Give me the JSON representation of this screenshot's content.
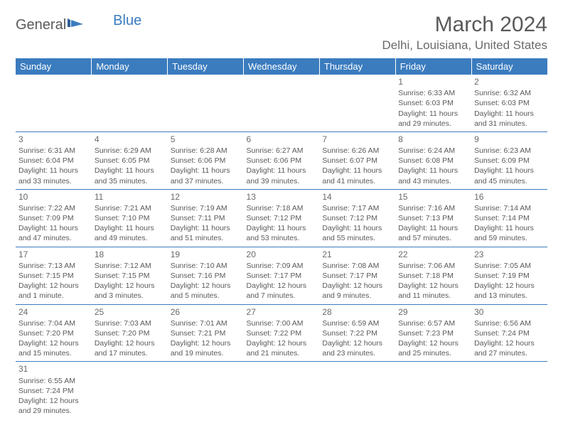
{
  "logo": {
    "text_general": "General",
    "text_blue": "Blue"
  },
  "title": "March 2024",
  "location": "Delhi, Louisiana, United States",
  "colors": {
    "header_bg": "#3b7cbf",
    "header_text": "#ffffff",
    "body_text": "#5a5a5a",
    "rule": "#3b7cbf",
    "background": "#ffffff"
  },
  "typography": {
    "title_fontsize": 30,
    "location_fontsize": 17,
    "th_fontsize": 13,
    "cell_fontsize": 10.5,
    "daynum_fontsize": 12
  },
  "weekdays": [
    "Sunday",
    "Monday",
    "Tuesday",
    "Wednesday",
    "Thursday",
    "Friday",
    "Saturday"
  ],
  "weeks": [
    [
      null,
      null,
      null,
      null,
      null,
      {
        "n": "1",
        "sr": "Sunrise: 6:33 AM",
        "ss": "Sunset: 6:03 PM",
        "d1": "Daylight: 11 hours",
        "d2": "and 29 minutes."
      },
      {
        "n": "2",
        "sr": "Sunrise: 6:32 AM",
        "ss": "Sunset: 6:03 PM",
        "d1": "Daylight: 11 hours",
        "d2": "and 31 minutes."
      }
    ],
    [
      {
        "n": "3",
        "sr": "Sunrise: 6:31 AM",
        "ss": "Sunset: 6:04 PM",
        "d1": "Daylight: 11 hours",
        "d2": "and 33 minutes."
      },
      {
        "n": "4",
        "sr": "Sunrise: 6:29 AM",
        "ss": "Sunset: 6:05 PM",
        "d1": "Daylight: 11 hours",
        "d2": "and 35 minutes."
      },
      {
        "n": "5",
        "sr": "Sunrise: 6:28 AM",
        "ss": "Sunset: 6:06 PM",
        "d1": "Daylight: 11 hours",
        "d2": "and 37 minutes."
      },
      {
        "n": "6",
        "sr": "Sunrise: 6:27 AM",
        "ss": "Sunset: 6:06 PM",
        "d1": "Daylight: 11 hours",
        "d2": "and 39 minutes."
      },
      {
        "n": "7",
        "sr": "Sunrise: 6:26 AM",
        "ss": "Sunset: 6:07 PM",
        "d1": "Daylight: 11 hours",
        "d2": "and 41 minutes."
      },
      {
        "n": "8",
        "sr": "Sunrise: 6:24 AM",
        "ss": "Sunset: 6:08 PM",
        "d1": "Daylight: 11 hours",
        "d2": "and 43 minutes."
      },
      {
        "n": "9",
        "sr": "Sunrise: 6:23 AM",
        "ss": "Sunset: 6:09 PM",
        "d1": "Daylight: 11 hours",
        "d2": "and 45 minutes."
      }
    ],
    [
      {
        "n": "10",
        "sr": "Sunrise: 7:22 AM",
        "ss": "Sunset: 7:09 PM",
        "d1": "Daylight: 11 hours",
        "d2": "and 47 minutes."
      },
      {
        "n": "11",
        "sr": "Sunrise: 7:21 AM",
        "ss": "Sunset: 7:10 PM",
        "d1": "Daylight: 11 hours",
        "d2": "and 49 minutes."
      },
      {
        "n": "12",
        "sr": "Sunrise: 7:19 AM",
        "ss": "Sunset: 7:11 PM",
        "d1": "Daylight: 11 hours",
        "d2": "and 51 minutes."
      },
      {
        "n": "13",
        "sr": "Sunrise: 7:18 AM",
        "ss": "Sunset: 7:12 PM",
        "d1": "Daylight: 11 hours",
        "d2": "and 53 minutes."
      },
      {
        "n": "14",
        "sr": "Sunrise: 7:17 AM",
        "ss": "Sunset: 7:12 PM",
        "d1": "Daylight: 11 hours",
        "d2": "and 55 minutes."
      },
      {
        "n": "15",
        "sr": "Sunrise: 7:16 AM",
        "ss": "Sunset: 7:13 PM",
        "d1": "Daylight: 11 hours",
        "d2": "and 57 minutes."
      },
      {
        "n": "16",
        "sr": "Sunrise: 7:14 AM",
        "ss": "Sunset: 7:14 PM",
        "d1": "Daylight: 11 hours",
        "d2": "and 59 minutes."
      }
    ],
    [
      {
        "n": "17",
        "sr": "Sunrise: 7:13 AM",
        "ss": "Sunset: 7:15 PM",
        "d1": "Daylight: 12 hours",
        "d2": "and 1 minute."
      },
      {
        "n": "18",
        "sr": "Sunrise: 7:12 AM",
        "ss": "Sunset: 7:15 PM",
        "d1": "Daylight: 12 hours",
        "d2": "and 3 minutes."
      },
      {
        "n": "19",
        "sr": "Sunrise: 7:10 AM",
        "ss": "Sunset: 7:16 PM",
        "d1": "Daylight: 12 hours",
        "d2": "and 5 minutes."
      },
      {
        "n": "20",
        "sr": "Sunrise: 7:09 AM",
        "ss": "Sunset: 7:17 PM",
        "d1": "Daylight: 12 hours",
        "d2": "and 7 minutes."
      },
      {
        "n": "21",
        "sr": "Sunrise: 7:08 AM",
        "ss": "Sunset: 7:17 PM",
        "d1": "Daylight: 12 hours",
        "d2": "and 9 minutes."
      },
      {
        "n": "22",
        "sr": "Sunrise: 7:06 AM",
        "ss": "Sunset: 7:18 PM",
        "d1": "Daylight: 12 hours",
        "d2": "and 11 minutes."
      },
      {
        "n": "23",
        "sr": "Sunrise: 7:05 AM",
        "ss": "Sunset: 7:19 PM",
        "d1": "Daylight: 12 hours",
        "d2": "and 13 minutes."
      }
    ],
    [
      {
        "n": "24",
        "sr": "Sunrise: 7:04 AM",
        "ss": "Sunset: 7:20 PM",
        "d1": "Daylight: 12 hours",
        "d2": "and 15 minutes."
      },
      {
        "n": "25",
        "sr": "Sunrise: 7:03 AM",
        "ss": "Sunset: 7:20 PM",
        "d1": "Daylight: 12 hours",
        "d2": "and 17 minutes."
      },
      {
        "n": "26",
        "sr": "Sunrise: 7:01 AM",
        "ss": "Sunset: 7:21 PM",
        "d1": "Daylight: 12 hours",
        "d2": "and 19 minutes."
      },
      {
        "n": "27",
        "sr": "Sunrise: 7:00 AM",
        "ss": "Sunset: 7:22 PM",
        "d1": "Daylight: 12 hours",
        "d2": "and 21 minutes."
      },
      {
        "n": "28",
        "sr": "Sunrise: 6:59 AM",
        "ss": "Sunset: 7:22 PM",
        "d1": "Daylight: 12 hours",
        "d2": "and 23 minutes."
      },
      {
        "n": "29",
        "sr": "Sunrise: 6:57 AM",
        "ss": "Sunset: 7:23 PM",
        "d1": "Daylight: 12 hours",
        "d2": "and 25 minutes."
      },
      {
        "n": "30",
        "sr": "Sunrise: 6:56 AM",
        "ss": "Sunset: 7:24 PM",
        "d1": "Daylight: 12 hours",
        "d2": "and 27 minutes."
      }
    ],
    [
      {
        "n": "31",
        "sr": "Sunrise: 6:55 AM",
        "ss": "Sunset: 7:24 PM",
        "d1": "Daylight: 12 hours",
        "d2": "and 29 minutes."
      },
      null,
      null,
      null,
      null,
      null,
      null
    ]
  ]
}
